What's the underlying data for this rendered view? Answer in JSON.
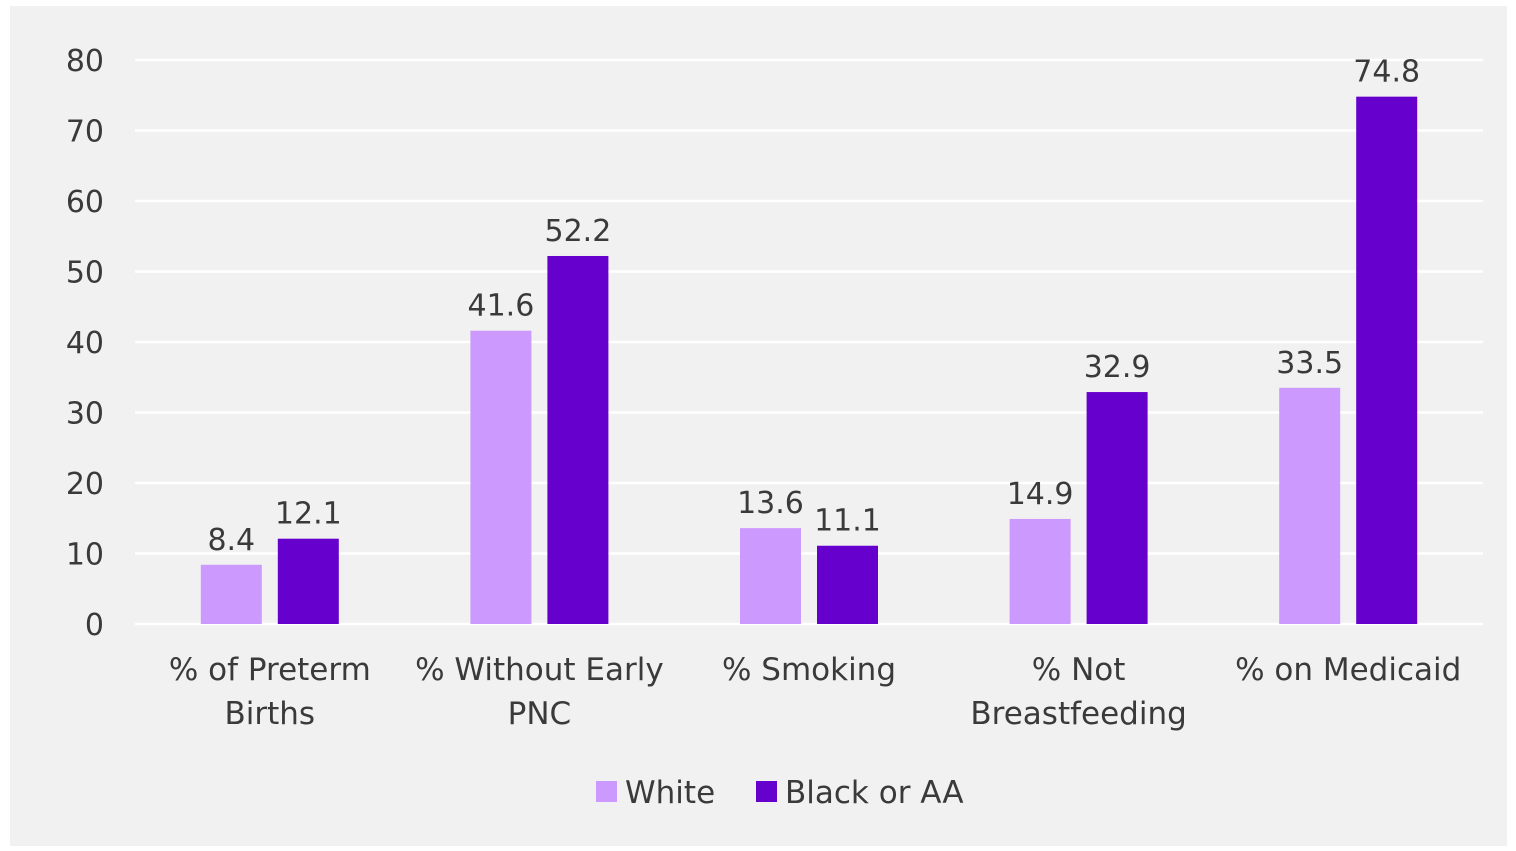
{
  "chart_data": {
    "type": "bar",
    "categories": [
      [
        "% of Preterm",
        "Births"
      ],
      [
        "% Without Early",
        "PNC"
      ],
      [
        "% Smoking"
      ],
      [
        "% Not",
        "Breastfeeding"
      ],
      [
        "% on Medicaid"
      ]
    ],
    "series": [
      {
        "name": "White",
        "color": "#cc99ff",
        "values": [
          8.4,
          41.6,
          13.6,
          14.9,
          33.5
        ]
      },
      {
        "name": "Black or AA",
        "color": "#6600cc",
        "values": [
          12.1,
          52.2,
          11.1,
          32.9,
          74.8
        ]
      }
    ],
    "title": "",
    "xlabel": "",
    "ylabel": "",
    "ylim": [
      0,
      80
    ],
    "yticks": [
      0,
      10,
      20,
      30,
      40,
      50,
      60,
      70,
      80
    ],
    "grid": true,
    "legend_position": "bottom",
    "data_labels": true
  }
}
